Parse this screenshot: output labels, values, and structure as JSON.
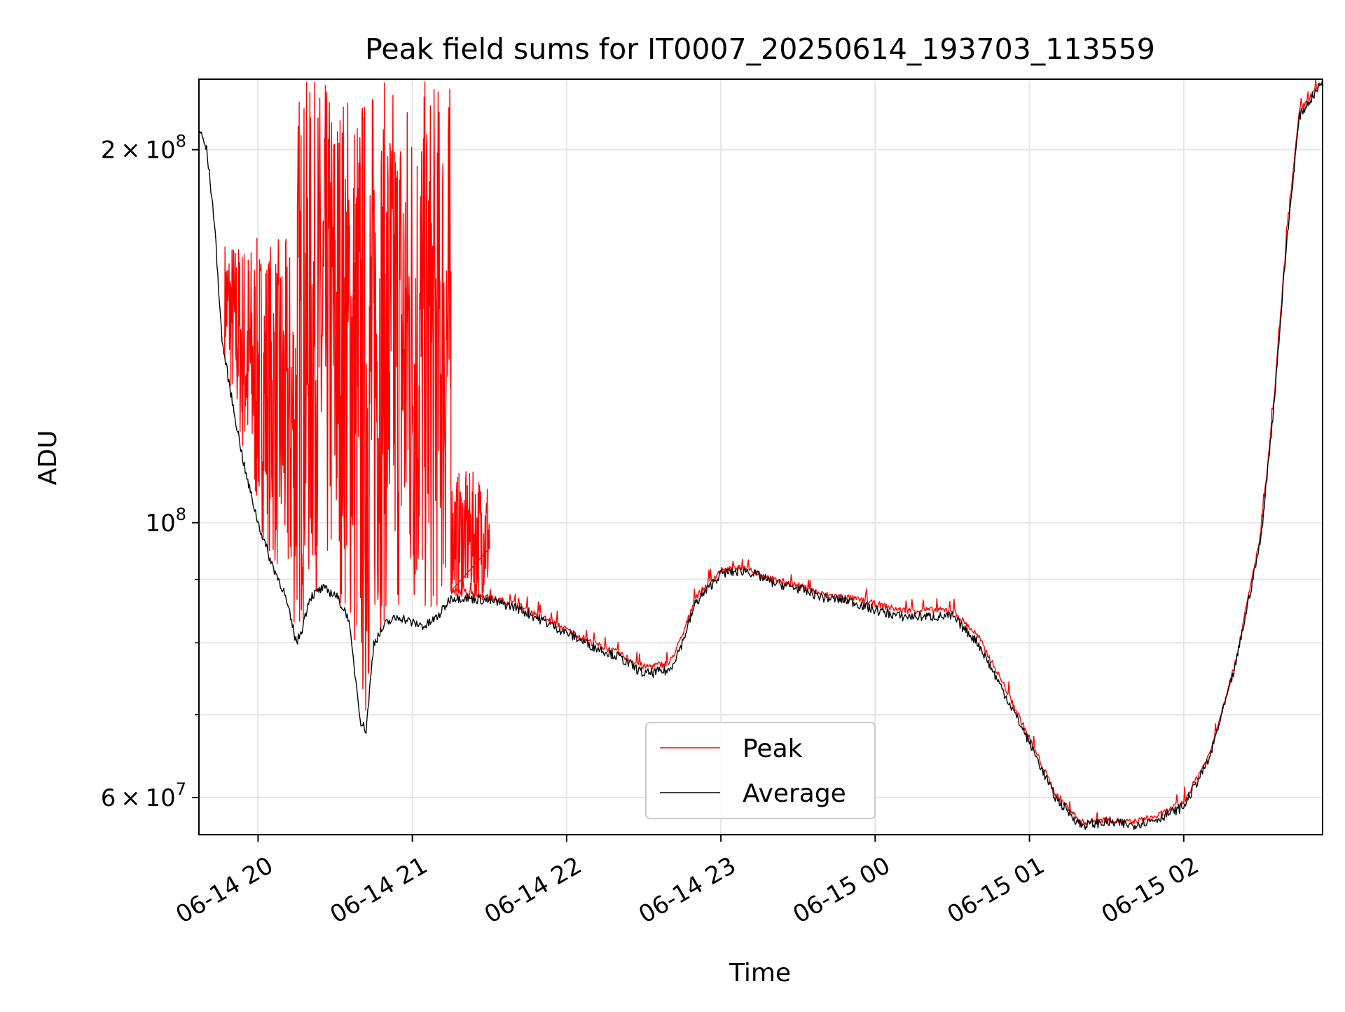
{
  "chart_data": {
    "type": "line",
    "title": "Peak field sums for IT0007_20250614_193703_113559",
    "xlabel": "Time",
    "ylabel": "ADU",
    "yscale": "log",
    "xlim": [
      "2025-06-14 19:37",
      "2025-06-15 02:54"
    ],
    "ylim": [
      56000000.0,
      228000000.0
    ],
    "x_tick_labels": [
      "06-14 20",
      "06-14 21",
      "06-14 22",
      "06-14 23",
      "06-15 00",
      "06-15 01",
      "06-15 02"
    ],
    "x_ticks": [
      "2025-06-14 20:00",
      "2025-06-14 21:00",
      "2025-06-14 22:00",
      "2025-06-14 23:00",
      "2025-06-15 00:00",
      "2025-06-15 01:00",
      "2025-06-15 02:00"
    ],
    "y_major_ticks": [
      {
        "value": 200000000.0,
        "label_mantissa": "2",
        "label_base": "10",
        "label_exp": "8"
      },
      {
        "value": 100000000.0,
        "label_mantissa": "",
        "label_base": "10",
        "label_exp": "8"
      },
      {
        "value": 60000000.0,
        "label_mantissa": "6",
        "label_base": "10",
        "label_exp": "7"
      }
    ],
    "y_minor_ticks": [
      70000000.0,
      80000000.0,
      90000000.0
    ],
    "grid": true,
    "legend_position": "lower-center",
    "series": [
      {
        "name": "Peak",
        "color": "#ff0000",
        "noisy_segments": [
          {
            "from": "2025-06-14 19:47",
            "to": "2025-06-14 20:15",
            "max": 170000000.0
          },
          {
            "from": "2025-06-14 20:15",
            "to": "2025-06-14 21:15",
            "max": 228000000.0
          },
          {
            "from": "2025-06-14 21:15",
            "to": "2025-06-14 21:30",
            "max": 110000000.0
          }
        ],
        "x": [
          "2025-06-14 21:15",
          "2025-06-14 21:20",
          "2025-06-14 21:30",
          "2025-06-14 21:40",
          "2025-06-14 21:50",
          "2025-06-14 22:00",
          "2025-06-14 22:10",
          "2025-06-14 22:20",
          "2025-06-14 22:30",
          "2025-06-14 22:40",
          "2025-06-14 22:45",
          "2025-06-14 22:50",
          "2025-06-14 23:00",
          "2025-06-14 23:10",
          "2025-06-14 23:20",
          "2025-06-14 23:30",
          "2025-06-14 23:40",
          "2025-06-14 23:50",
          "2025-06-15 00:00",
          "2025-06-15 00:10",
          "2025-06-15 00:20",
          "2025-06-15 00:30",
          "2025-06-15 00:40",
          "2025-06-15 00:50",
          "2025-06-15 01:00",
          "2025-06-15 01:10",
          "2025-06-15 01:20",
          "2025-06-15 01:30",
          "2025-06-15 01:40",
          "2025-06-15 01:50",
          "2025-06-15 02:00",
          "2025-06-15 02:10",
          "2025-06-15 02:20",
          "2025-06-15 02:30",
          "2025-06-15 02:35",
          "2025-06-15 02:40",
          "2025-06-15 02:45",
          "2025-06-15 02:54"
        ],
        "values": [
          88000000.0,
          88000000.0,
          87000000.0,
          86000000.0,
          84000000.0,
          82000000.0,
          80000000.0,
          78500000.0,
          76500000.0,
          77000000.0,
          81000000.0,
          87000000.0,
          91500000.0,
          92000000.0,
          90000000.0,
          89000000.0,
          87500000.0,
          87000000.0,
          86000000.0,
          85000000.0,
          85000000.0,
          85000000.0,
          81000000.0,
          74000000.0,
          67000000.0,
          60500000.0,
          57300000.0,
          57600000.0,
          57300000.0,
          58000000.0,
          59500000.0,
          65000000.0,
          77000000.0,
          98000000.0,
          125000000.0,
          170000000.0,
          215000000.0,
          227000000.0
        ]
      },
      {
        "name": "Average",
        "color": "#000000",
        "x": [
          "2025-06-14 19:37",
          "2025-06-14 19:40",
          "2025-06-14 19:43",
          "2025-06-14 19:46",
          "2025-06-14 19:50",
          "2025-06-14 19:55",
          "2025-06-14 20:00",
          "2025-06-14 20:05",
          "2025-06-14 20:10",
          "2025-06-14 20:15",
          "2025-06-14 20:17",
          "2025-06-14 20:20",
          "2025-06-14 20:25",
          "2025-06-14 20:30",
          "2025-06-14 20:35",
          "2025-06-14 20:40",
          "2025-06-14 20:42",
          "2025-06-14 20:45",
          "2025-06-14 20:50",
          "2025-06-14 20:55",
          "2025-06-14 21:00",
          "2025-06-14 21:05",
          "2025-06-14 21:10",
          "2025-06-14 21:15",
          "2025-06-14 21:20",
          "2025-06-14 21:30",
          "2025-06-14 21:40",
          "2025-06-14 21:50",
          "2025-06-14 22:00",
          "2025-06-14 22:10",
          "2025-06-14 22:20",
          "2025-06-14 22:30",
          "2025-06-14 22:40",
          "2025-06-14 22:45",
          "2025-06-14 22:50",
          "2025-06-14 23:00",
          "2025-06-14 23:10",
          "2025-06-14 23:20",
          "2025-06-14 23:30",
          "2025-06-14 23:40",
          "2025-06-14 23:50",
          "2025-06-15 00:00",
          "2025-06-15 00:10",
          "2025-06-15 00:20",
          "2025-06-15 00:30",
          "2025-06-15 00:40",
          "2025-06-15 00:50",
          "2025-06-15 01:00",
          "2025-06-15 01:10",
          "2025-06-15 01:20",
          "2025-06-15 01:30",
          "2025-06-15 01:40",
          "2025-06-15 01:50",
          "2025-06-15 02:00",
          "2025-06-15 02:10",
          "2025-06-15 02:20",
          "2025-06-15 02:30",
          "2025-06-15 02:35",
          "2025-06-15 02:40",
          "2025-06-15 02:45",
          "2025-06-15 02:54"
        ],
        "values": [
          208000000.0,
          200000000.0,
          175000000.0,
          140000000.0,
          125000000.0,
          110000000.0,
          100000000.0,
          93000000.0,
          88000000.0,
          80000000.0,
          82000000.0,
          87000000.0,
          88500000.0,
          87500000.0,
          84000000.0,
          69000000.0,
          68000000.0,
          80000000.0,
          83000000.0,
          84000000.0,
          83000000.0,
          82500000.0,
          84000000.0,
          87000000.0,
          87000000.0,
          86500000.0,
          85500000.0,
          83500000.0,
          81500000.0,
          79500000.0,
          78000000.0,
          75500000.0,
          76000000.0,
          80000000.0,
          86000000.0,
          91000000.0,
          91500000.0,
          89500000.0,
          88500000.0,
          87000000.0,
          86500000.0,
          85000000.0,
          84000000.0,
          84000000.0,
          84000000.0,
          80000000.0,
          73000000.0,
          66500000.0,
          60000000.0,
          57000000.0,
          57300000.0,
          57000000.0,
          57700000.0,
          59000000.0,
          64500000.0,
          76500000.0,
          97000000.0,
          124000000.0,
          168000000.0,
          213000000.0,
          227000000.0
        ]
      }
    ]
  }
}
